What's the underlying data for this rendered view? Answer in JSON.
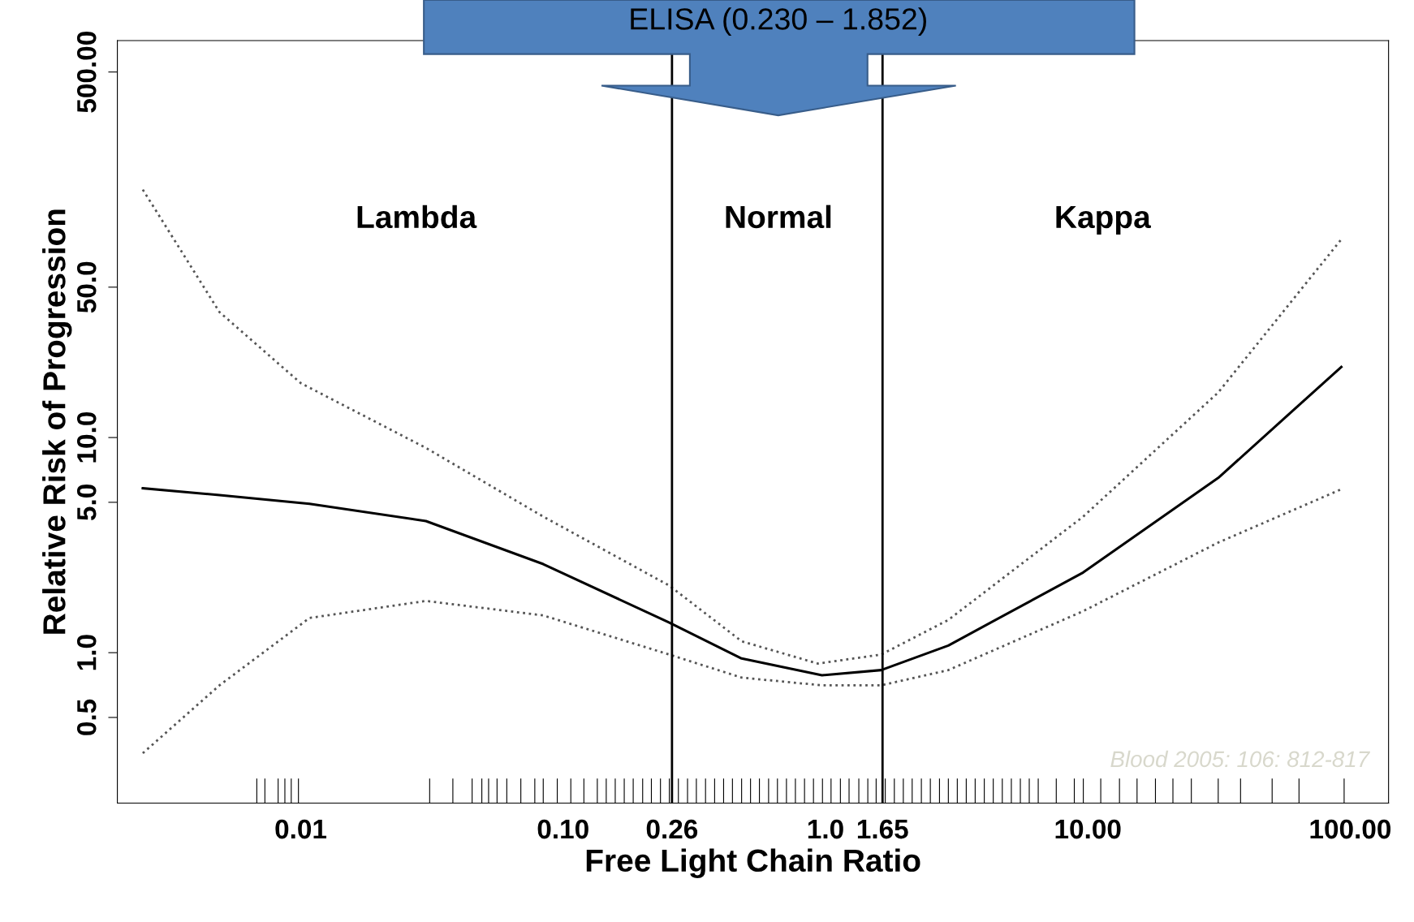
{
  "chart_data": {
    "type": "line",
    "xlabel": "Free Light Chain Ratio",
    "ylabel": "Relative Risk of Progression",
    "log": "xy",
    "xlim": [
      0.002,
      140
    ],
    "ylim": [
      0.2,
      700
    ],
    "xticks": [
      {
        "value": 0.01,
        "label": "0.01"
      },
      {
        "value": 0.1,
        "label": "0.10"
      },
      {
        "value": 0.26,
        "label": "0.26"
      },
      {
        "value": 1,
        "label": "1.0"
      },
      {
        "value": 1.65,
        "label": "1.65"
      },
      {
        "value": 10,
        "label": "10.00"
      },
      {
        "value": 100,
        "label": "100.00"
      }
    ],
    "yticks": [
      {
        "value": 0.5,
        "label": "0.5"
      },
      {
        "value": 1,
        "label": "1.0"
      },
      {
        "value": 5,
        "label": "5.0"
      },
      {
        "value": 10,
        "label": "10.0"
      },
      {
        "value": 50,
        "label": "50.0"
      },
      {
        "value": 500,
        "label": "500.00"
      }
    ],
    "grid": false,
    "series": [
      {
        "color": "#000000",
        "line_style": "solid",
        "x": [
          0.0025,
          0.0049,
          0.0108,
          0.03,
          0.084,
          0.254,
          0.479,
          0.97,
          1.63,
          2.94,
          9.6,
          31.4,
          92.5
        ],
        "values": [
          5.81,
          5.4,
          4.92,
          4.09,
          2.58,
          1.38,
          0.94,
          0.785,
          0.83,
          1.08,
          2.36,
          6.49,
          21.3
        ]
      },
      {
        "color": "#555555",
        "line_style": "dotted",
        "x": [
          0.0025,
          0.0049,
          0.01,
          0.03,
          0.084,
          0.254,
          0.479,
          0.935,
          1.63,
          2.94,
          9.6,
          31.4,
          92.5
        ],
        "values": [
          142,
          38.3,
          17.9,
          8.95,
          4.29,
          2.05,
          1.13,
          0.89,
          0.98,
          1.42,
          4.29,
          16.2,
          83.4
        ]
      },
      {
        "color": "#555555",
        "line_style": "dotted",
        "x": [
          0.0025,
          0.0049,
          0.0108,
          0.03,
          0.084,
          0.254,
          0.479,
          0.97,
          1.63,
          2.94,
          9.6,
          31.4,
          92.5
        ],
        "values": [
          0.341,
          0.705,
          1.45,
          1.74,
          1.49,
          0.98,
          0.766,
          0.705,
          0.705,
          0.83,
          1.56,
          3.25,
          5.75
        ]
      },
      {
        "type": "bar",
        "color": "#000000",
        "x": [
          0.0068,
          0.0073,
          0.0082,
          0.0087,
          0.0092,
          0.0098,
          0.031,
          0.038,
          0.045,
          0.049,
          0.052,
          0.056,
          0.061,
          0.069,
          0.078,
          0.084,
          0.095,
          0.107,
          0.12,
          0.135,
          0.146,
          0.158,
          0.171,
          0.185,
          0.201,
          0.217,
          0.235,
          0.254,
          0.275,
          0.298,
          0.322,
          0.349,
          0.378,
          0.409,
          0.442,
          0.479,
          0.518,
          0.56,
          0.607,
          0.656,
          0.71,
          0.768,
          0.832,
          0.9,
          0.974,
          1.05,
          1.14,
          1.23,
          1.34,
          1.45,
          1.56,
          1.69,
          1.83,
          1.98,
          2.14,
          2.32,
          2.51,
          2.72,
          2.94,
          3.18,
          3.44,
          3.72,
          4.03,
          4.36,
          4.72,
          5.11,
          5.53,
          5.98,
          6.47,
          7.58,
          8.88,
          9.61,
          11.2,
          13.2,
          15.4,
          18.1,
          21.1,
          24.8,
          31.4,
          38.2,
          50.4,
          63.8,
          94.8
        ],
        "values": [
          0.26,
          0.26,
          0.26,
          0.26,
          0.26,
          0.26,
          0.26,
          0.26,
          0.26,
          0.26,
          0.26,
          0.26,
          0.26,
          0.26,
          0.26,
          0.26,
          0.26,
          0.26,
          0.26,
          0.26,
          0.26,
          0.26,
          0.26,
          0.26,
          0.26,
          0.26,
          0.26,
          0.26,
          0.26,
          0.26,
          0.26,
          0.26,
          0.26,
          0.26,
          0.26,
          0.26,
          0.26,
          0.26,
          0.26,
          0.26,
          0.26,
          0.26,
          0.26,
          0.26,
          0.26,
          0.26,
          0.26,
          0.26,
          0.26,
          0.26,
          0.26,
          0.26,
          0.26,
          0.26,
          0.26,
          0.26,
          0.26,
          0.26,
          0.26,
          0.26,
          0.26,
          0.26,
          0.26,
          0.26,
          0.26,
          0.26,
          0.26,
          0.26,
          0.26,
          0.26,
          0.26,
          0.26,
          0.26,
          0.26,
          0.26,
          0.26,
          0.26,
          0.26,
          0.26,
          0.26,
          0.26,
          0.26,
          0.26
        ]
      }
    ],
    "ref_lines": [
      {
        "axis": "x",
        "value": 0.26,
        "color": "#000000"
      },
      {
        "axis": "x",
        "value": 1.65,
        "color": "#000000"
      }
    ],
    "annotations": [
      "ELISA (0.230 – 1.852)",
      "Lambda",
      "Normal",
      "Kappa",
      "Blood 2005: 106: 812-817"
    ]
  }
}
